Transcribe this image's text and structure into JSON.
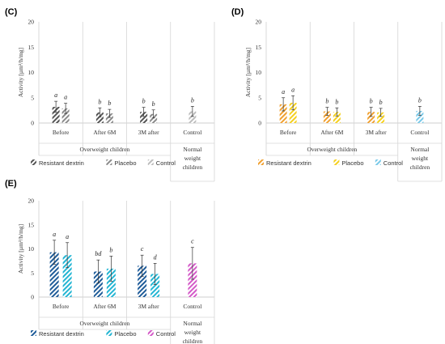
{
  "figure": {
    "panels": [
      "(C)",
      "(D)",
      "(E)"
    ]
  },
  "chart_data": [
    {
      "panel": "(C)",
      "type": "bar",
      "ylabel": "Activity [µm³/h/mg]",
      "ylim": [
        0,
        20
      ],
      "yticks": [
        "0",
        "5",
        "10",
        "15",
        "20"
      ],
      "groups": [
        "Before",
        "After 6M",
        "3M after",
        "Control"
      ],
      "group_span_labels": [
        "Overweight children",
        "Normal weight children"
      ],
      "series": [
        {
          "name": "Resistant dextrin",
          "color": "#555555",
          "values": [
            3.2,
            2.1,
            2.2,
            null
          ],
          "errors": [
            1.1,
            0.9,
            0.9,
            null
          ],
          "letters": [
            "a",
            "b",
            "b",
            null
          ]
        },
        {
          "name": "Placebo",
          "color": "#8a8a8a",
          "values": [
            2.9,
            1.9,
            1.8,
            null
          ],
          "errors": [
            1.0,
            0.8,
            0.8,
            null
          ],
          "letters": [
            "a",
            "b",
            "b",
            null
          ]
        },
        {
          "name": "Control",
          "color": "#bdbdbd",
          "values": [
            null,
            null,
            null,
            2.3
          ],
          "errors": [
            null,
            null,
            null,
            1.0
          ],
          "letters": [
            null,
            null,
            null,
            "b"
          ]
        }
      ],
      "legend": [
        "Resistant dextrin",
        "Placebo",
        "Control"
      ]
    },
    {
      "panel": "(D)",
      "type": "bar",
      "ylabel": "Activity [µm³/h/mg]",
      "ylim": [
        0,
        20
      ],
      "yticks": [
        "0",
        "5",
        "10",
        "15",
        "20"
      ],
      "groups": [
        "Before",
        "After 6M",
        "3M after",
        "Control"
      ],
      "group_span_labels": [
        "Overweight children",
        "Normal weight children"
      ],
      "series": [
        {
          "name": "Resistant dextrin",
          "color": "#f0a030",
          "values": [
            3.7,
            2.3,
            2.2,
            null
          ],
          "errors": [
            1.3,
            0.8,
            0.9,
            null
          ],
          "letters": [
            "a",
            "b",
            "b",
            null
          ]
        },
        {
          "name": "Placebo",
          "color": "#f5d020",
          "values": [
            4.0,
            2.2,
            2.1,
            null
          ],
          "errors": [
            1.4,
            0.8,
            0.8,
            null
          ],
          "letters": [
            "a",
            "b",
            "b",
            null
          ]
        },
        {
          "name": "Control",
          "color": "#79c9e8",
          "values": [
            null,
            null,
            null,
            2.4
          ],
          "errors": [
            null,
            null,
            null,
            0.9
          ],
          "letters": [
            null,
            null,
            null,
            "b"
          ]
        }
      ],
      "legend": [
        "Resistant dextrin",
        "Placebo",
        "Control"
      ]
    },
    {
      "panel": "(E)",
      "type": "bar",
      "ylabel": "Activity [µm³/h/mg]",
      "ylim": [
        0,
        20
      ],
      "yticks": [
        "0",
        "5",
        "10",
        "15",
        "20"
      ],
      "groups": [
        "Before",
        "After 6M",
        "3M after",
        "Control"
      ],
      "group_span_labels": [
        "Overweight children",
        "Normal weight children"
      ],
      "series": [
        {
          "name": "Resistant dextrin",
          "color": "#1f5c99",
          "values": [
            9.3,
            5.3,
            6.5,
            null
          ],
          "errors": [
            2.5,
            2.4,
            2.2,
            null
          ],
          "letters": [
            "a",
            "bd",
            "c",
            null
          ]
        },
        {
          "name": "Placebo",
          "color": "#23b5d3",
          "values": [
            8.7,
            5.9,
            4.8,
            null
          ],
          "errors": [
            2.6,
            2.6,
            2.2,
            null
          ],
          "letters": [
            "a",
            "b",
            "d",
            null
          ]
        },
        {
          "name": "Control",
          "color": "#d45ac8",
          "values": [
            null,
            null,
            null,
            7.0
          ],
          "errors": [
            null,
            null,
            null,
            3.3
          ],
          "letters": [
            null,
            null,
            null,
            "c"
          ]
        }
      ],
      "legend": [
        "Resistant dextrin",
        "Placebo",
        "Control"
      ]
    }
  ]
}
